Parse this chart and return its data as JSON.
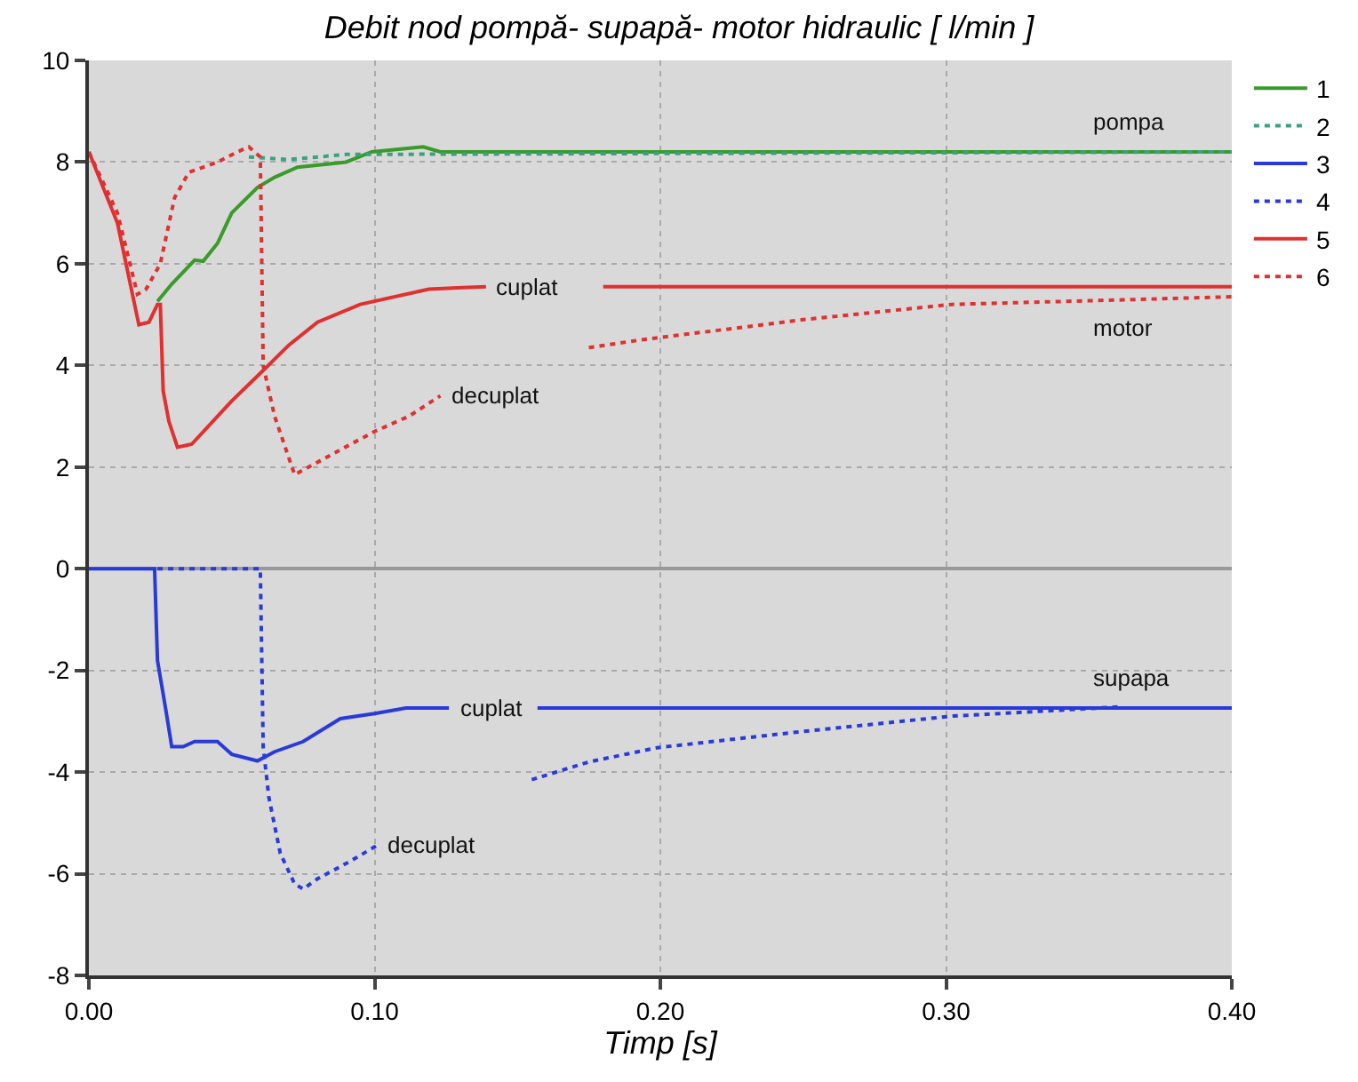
{
  "chart_data": {
    "type": "line",
    "title": "Debit nod pompă- supapă- motor hidraulic [ l/min ]",
    "xlabel": "Timp [s]",
    "xlim": [
      0,
      0.4
    ],
    "xticks": [
      {
        "value": 0,
        "label": "0.00"
      },
      {
        "value": 0.1,
        "label": "0.10"
      },
      {
        "value": 0.2,
        "label": "0.20"
      },
      {
        "value": 0.3,
        "label": "0.30"
      },
      {
        "value": 0.4,
        "label": "0.40"
      }
    ],
    "ylim": [
      -8,
      10
    ],
    "yticks": [
      -8,
      -6,
      -4,
      -2,
      0,
      2,
      4,
      6,
      8,
      10
    ],
    "grid": true,
    "legend": "top right",
    "marker": "none",
    "series": [
      {
        "name": "1",
        "color": "#3a9a2a",
        "line_style": "solid",
        "x": [
          0.024,
          0.029,
          0.037,
          0.04,
          0.045,
          0.05,
          0.059,
          0.065,
          0.073,
          0.09,
          0.099,
          0.117,
          0.123,
          0.4
        ],
        "values": [
          5.26,
          5.6,
          6.07,
          6.05,
          6.4,
          7.0,
          7.5,
          7.7,
          7.9,
          8.0,
          8.2,
          8.3,
          8.2,
          8.2
        ]
      },
      {
        "name": "2",
        "color": "#3aa080",
        "line_style": "dotted",
        "x": [
          0.056,
          0.07,
          0.09,
          0.4
        ],
        "values": [
          8.1,
          8.05,
          8.15,
          8.2
        ]
      },
      {
        "name": "3",
        "color": "#2a3ad8",
        "line_style": "solid",
        "x": [
          0,
          0.023,
          0.024,
          0.027,
          0.029,
          0.033,
          0.037,
          0.045,
          0.05,
          0.059,
          0.065,
          0.075,
          0.088,
          0.1,
          0.111,
          0.126,
          0.14,
          0.157,
          0.4
        ],
        "values": [
          0,
          0,
          -1.8,
          -2.8,
          -3.5,
          -3.5,
          -3.4,
          -3.4,
          -3.65,
          -3.78,
          -3.6,
          -3.4,
          -2.95,
          -2.85,
          -2.74,
          -2.74,
          null,
          -2.74,
          -2.74
        ]
      },
      {
        "name": "4",
        "color": "#2a3ad8",
        "line_style": "dotted",
        "x": [
          0.024,
          0.06,
          0.061,
          0.063,
          0.067,
          0.072,
          0.075,
          0.08,
          0.09,
          0.101,
          0.13,
          0.155,
          0.175,
          0.199,
          0.25,
          0.302,
          0.36
        ],
        "values": [
          0,
          0,
          -3.5,
          -4.5,
          -5.6,
          -6.2,
          -6.3,
          -6.1,
          -5.8,
          -5.44,
          null,
          -4.15,
          -3.8,
          -3.52,
          -3.2,
          -2.9,
          -2.72
        ]
      },
      {
        "name": "5",
        "color": "#e03030",
        "line_style": "solid",
        "x": [
          0,
          0.01,
          0.0175,
          0.021,
          0.024,
          0.025,
          0.026,
          0.028,
          0.031,
          0.036,
          0.05,
          0.061,
          0.07,
          0.08,
          0.095,
          0.119,
          0.139,
          0.16,
          0.18,
          0.4
        ],
        "values": [
          8.2,
          6.8,
          4.8,
          4.85,
          5.2,
          5.2,
          3.5,
          2.9,
          2.39,
          2.45,
          3.3,
          3.9,
          4.4,
          4.85,
          5.2,
          5.5,
          5.55,
          null,
          5.55,
          5.55
        ]
      },
      {
        "name": "6",
        "color": "#e03030",
        "line_style": "dotted",
        "x": [
          0,
          0.01,
          0.017,
          0.02,
          0.025,
          0.03,
          0.035,
          0.045,
          0.052,
          0.056,
          0.06,
          0.061,
          0.065,
          0.072,
          0.09,
          0.1,
          0.112,
          0.123,
          0.15,
          0.175,
          0.193,
          0.25,
          0.302,
          0.362,
          0.4
        ],
        "values": [
          8.2,
          7.0,
          5.4,
          5.5,
          6.0,
          7.3,
          7.8,
          8.0,
          8.2,
          8.3,
          8.1,
          4.0,
          3.0,
          1.85,
          2.4,
          2.7,
          3.0,
          3.4,
          null,
          4.35,
          4.5,
          4.9,
          5.2,
          5.29,
          5.35
        ]
      }
    ],
    "annotations": [
      {
        "text": "pompa",
        "x": 0.35,
        "y": 8.2
      },
      {
        "text": "cuplat",
        "x": 0.139,
        "y": 5.55
      },
      {
        "text": "decuplat",
        "x": 0.123,
        "y": 3.4
      },
      {
        "text": "motor",
        "x": 0.35,
        "y": 5.29
      },
      {
        "text": "supapa",
        "x": 0.35,
        "y": -2.74
      },
      {
        "text": "cuplat",
        "x": 0.126,
        "y": -2.74
      },
      {
        "text": "decuplat",
        "x": 0.101,
        "y": -5.44
      }
    ]
  }
}
